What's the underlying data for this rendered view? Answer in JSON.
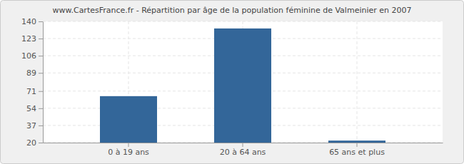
{
  "chart_data": {
    "type": "bar",
    "title": "www.CartesFrance.fr - Répartition par âge de la population féminine de Valmeinier en 2007",
    "categories": [
      "0 à 19 ans",
      "20 à 64 ans",
      "65 ans et plus"
    ],
    "values": [
      66,
      133,
      22
    ],
    "color": "#336699",
    "ylim": [
      20,
      140
    ],
    "yticks": [
      20,
      37,
      54,
      71,
      89,
      106,
      123,
      140
    ],
    "grid": true
  }
}
